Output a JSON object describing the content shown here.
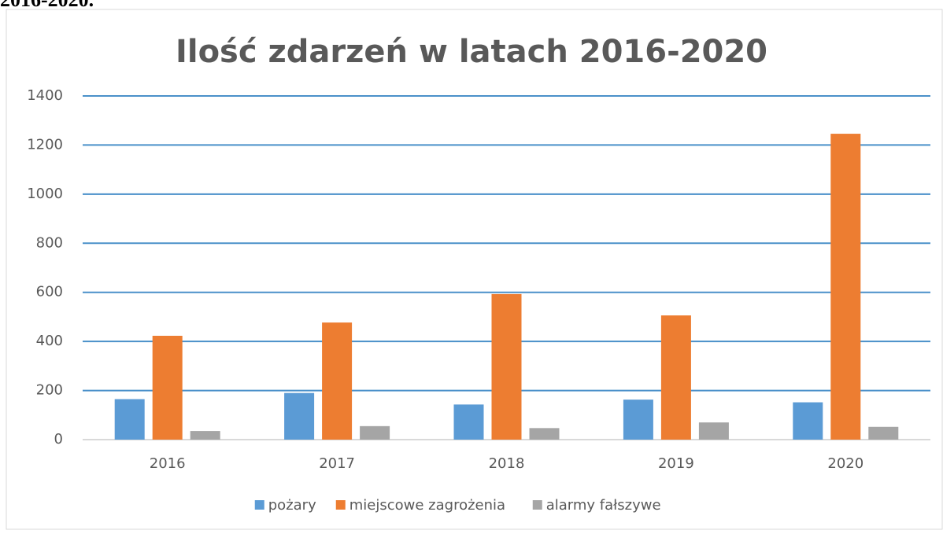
{
  "caption_fragment": "2016-2020.",
  "chart_data": {
    "type": "bar",
    "title": "Ilość zdarzeń w latach 2016-2020",
    "categories": [
      "2016",
      "2017",
      "2018",
      "2019",
      "2020"
    ],
    "series": [
      {
        "name": "pożary",
        "color": "#5b9bd5",
        "values": [
          165,
          190,
          143,
          163,
          152
        ]
      },
      {
        "name": "miejscowe zagrożenia",
        "color": "#ed7d31",
        "values": [
          423,
          477,
          593,
          506,
          1246
        ]
      },
      {
        "name": "alarmy fałszywe",
        "color": "#a5a5a5",
        "values": [
          35,
          55,
          47,
          70,
          52
        ]
      }
    ],
    "ylim": [
      0,
      1400
    ],
    "yticks": [
      0,
      200,
      400,
      600,
      800,
      1000,
      1200,
      1400
    ],
    "grid": true,
    "legend": "bottom"
  }
}
